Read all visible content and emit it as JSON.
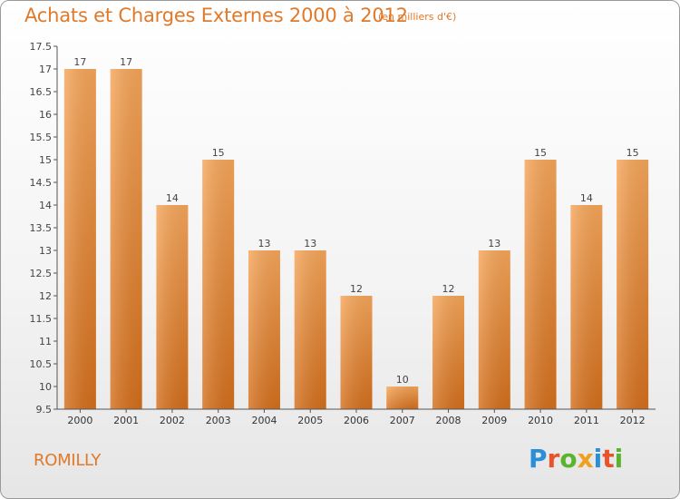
{
  "header": {
    "title": "Achats et Charges Externes 2000 à 2012",
    "subtitle": "(en milliers d'€)"
  },
  "footer": {
    "commune": "ROMILLY",
    "logo_text": "Proxiti",
    "logo_colors": [
      "#2a8fd8",
      "#e8542a",
      "#5ab52e",
      "#f0a020",
      "#2a8fd8",
      "#e8542a",
      "#5ab52e"
    ]
  },
  "colors": {
    "accent": "#e07a2a",
    "bar_top": "#f6a65a",
    "bar_bottom": "#d46f1c"
  },
  "chart_data": {
    "type": "bar",
    "categories": [
      "2000",
      "2001",
      "2002",
      "2003",
      "2004",
      "2005",
      "2006",
      "2007",
      "2008",
      "2009",
      "2010",
      "2011",
      "2012"
    ],
    "values": [
      17,
      17,
      14,
      15,
      13,
      13,
      12,
      10,
      12,
      13,
      15,
      14,
      15
    ],
    "data_labels": [
      "17",
      "17",
      "14",
      "15",
      "13",
      "13",
      "12",
      "10",
      "12",
      "13",
      "15",
      "14",
      "15"
    ],
    "ylim": [
      9.5,
      17.5
    ],
    "yticks": [
      "9.5",
      "10",
      "10.5",
      "11",
      "11.5",
      "12",
      "12.5",
      "13",
      "13.5",
      "14",
      "14.5",
      "15",
      "15.5",
      "16",
      "16.5",
      "17",
      "17.5"
    ],
    "grid": false,
    "xlabel": "",
    "ylabel": ""
  }
}
